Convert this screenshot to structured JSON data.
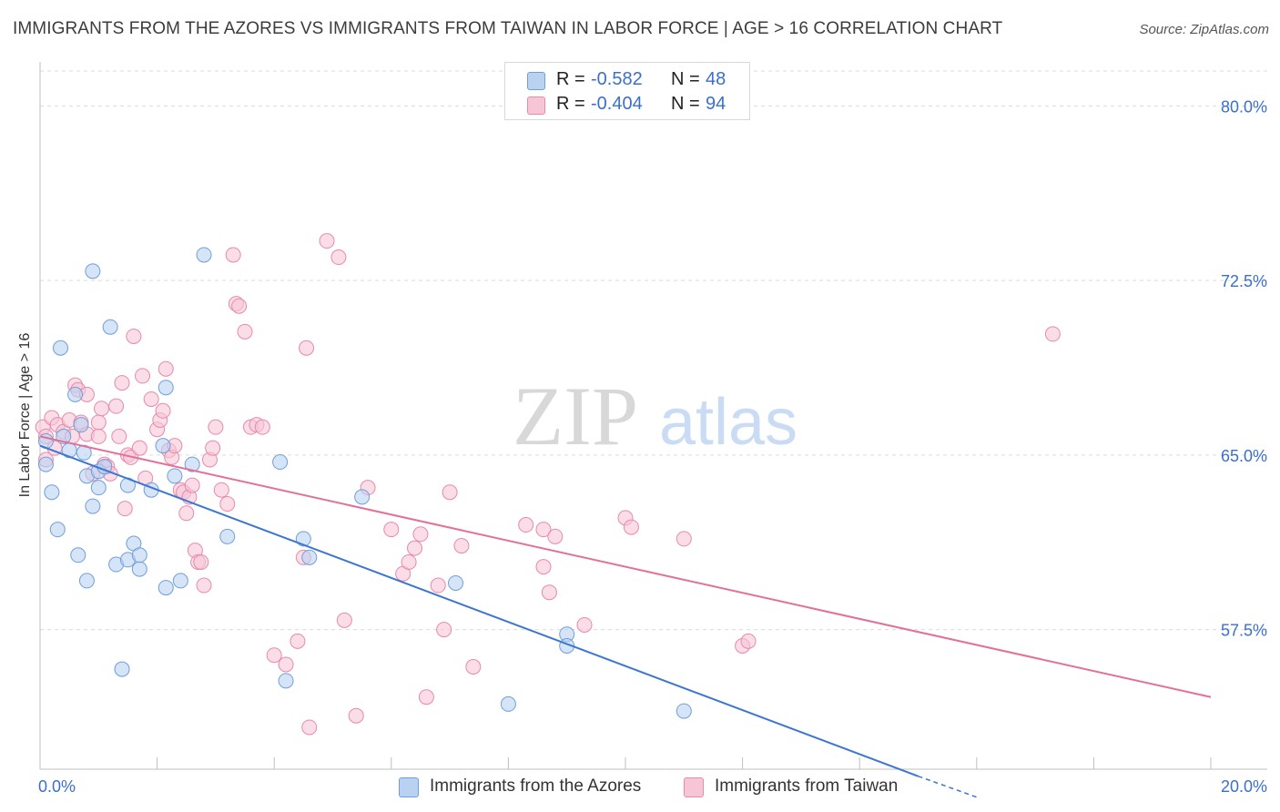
{
  "title": "IMMIGRANTS FROM THE AZORES VS IMMIGRANTS FROM TAIWAN IN LABOR FORCE | AGE > 16 CORRELATION CHART",
  "source": "Source: ZipAtlas.com",
  "watermark": {
    "zip": "ZIP",
    "atlas": "atlas"
  },
  "legend_top": {
    "rows": [
      {
        "r_label": "R =",
        "r_value": "-0.582",
        "n_label": "N =",
        "n_value": "48"
      },
      {
        "r_label": "R =",
        "r_value": "-0.404",
        "n_label": "N =",
        "n_value": "94"
      }
    ]
  },
  "legend_bottom": {
    "azores": "Immigrants from the Azores",
    "taiwan": "Immigrants from Taiwan"
  },
  "chart_data": {
    "type": "scatter",
    "title": "IMMIGRANTS FROM THE AZORES VS IMMIGRANTS FROM TAIWAN IN LABOR FORCE | AGE > 16 CORRELATION CHART",
    "xlabel": "",
    "ylabel": "In Labor Force | Age > 16",
    "xlim": [
      0,
      20
    ],
    "ylim": [
      51.5,
      81.5
    ],
    "x_tick_labels": [
      "0.0%",
      "20.0%"
    ],
    "y_ticks": [
      57.5,
      65.0,
      72.5,
      80.0
    ],
    "y_tick_labels": [
      "57.5%",
      "65.0%",
      "72.5%",
      "80.0%"
    ],
    "grid": true,
    "legend_position": "top-center",
    "colors": {
      "azores_fill": "#b9d2f2",
      "azores_stroke": "#6f9fdb",
      "azores_line": "#3a76d2",
      "taiwan_fill": "#f7c6d6",
      "taiwan_stroke": "#e88aaa",
      "taiwan_line": "#e27098",
      "tick_label": "#3b6fcc"
    },
    "series": [
      {
        "name": "Immigrants from the Azores",
        "r": -0.582,
        "n": 48,
        "trend": {
          "x": [
            0.0,
            15.0
          ],
          "y": [
            65.4,
            51.2
          ],
          "dashed_to": {
            "x": 16.0,
            "y": 50.3
          }
        },
        "points": [
          [
            0.1,
            65.6
          ],
          [
            0.1,
            64.6
          ],
          [
            0.2,
            63.4
          ],
          [
            0.3,
            61.8
          ],
          [
            0.35,
            69.6
          ],
          [
            0.4,
            65.8
          ],
          [
            0.5,
            65.2
          ],
          [
            0.6,
            67.6
          ],
          [
            0.65,
            60.7
          ],
          [
            0.7,
            66.3
          ],
          [
            0.75,
            65.1
          ],
          [
            0.8,
            59.6
          ],
          [
            0.8,
            64.1
          ],
          [
            0.9,
            62.8
          ],
          [
            0.9,
            72.9
          ],
          [
            1.0,
            63.6
          ],
          [
            1.0,
            64.3
          ],
          [
            1.1,
            64.5
          ],
          [
            1.2,
            70.5
          ],
          [
            1.3,
            60.3
          ],
          [
            1.4,
            55.8
          ],
          [
            1.5,
            60.5
          ],
          [
            1.5,
            63.7
          ],
          [
            1.6,
            61.2
          ],
          [
            1.7,
            60.1
          ],
          [
            1.7,
            60.7
          ],
          [
            1.9,
            63.5
          ],
          [
            2.1,
            65.4
          ],
          [
            2.15,
            59.3
          ],
          [
            2.15,
            67.9
          ],
          [
            2.3,
            64.1
          ],
          [
            2.4,
            59.6
          ],
          [
            2.6,
            64.6
          ],
          [
            2.8,
            73.6
          ],
          [
            3.2,
            61.5
          ],
          [
            4.1,
            64.7
          ],
          [
            4.2,
            55.3
          ],
          [
            4.5,
            61.4
          ],
          [
            4.6,
            60.6
          ],
          [
            5.5,
            63.2
          ],
          [
            7.1,
            59.5
          ],
          [
            8.0,
            54.3
          ],
          [
            9.0,
            57.3
          ],
          [
            9.0,
            56.8
          ],
          [
            11.0,
            54.0
          ]
        ]
      },
      {
        "name": "Immigrants from Taiwan",
        "r": -0.404,
        "n": 94,
        "trend": {
          "x": [
            0.0,
            20.0
          ],
          "y": [
            65.8,
            54.6
          ]
        },
        "points": [
          [
            0.05,
            66.2
          ],
          [
            0.1,
            65.8
          ],
          [
            0.1,
            64.8
          ],
          [
            0.2,
            66.6
          ],
          [
            0.25,
            65.3
          ],
          [
            0.3,
            66.3
          ],
          [
            0.4,
            66.0
          ],
          [
            0.5,
            66.5
          ],
          [
            0.55,
            65.8
          ],
          [
            0.6,
            68.0
          ],
          [
            0.65,
            67.8
          ],
          [
            0.7,
            66.4
          ],
          [
            0.8,
            67.6
          ],
          [
            0.8,
            65.9
          ],
          [
            0.9,
            64.2
          ],
          [
            1.0,
            66.4
          ],
          [
            1.0,
            65.8
          ],
          [
            1.05,
            67.0
          ],
          [
            1.1,
            64.6
          ],
          [
            1.15,
            64.5
          ],
          [
            1.2,
            64.2
          ],
          [
            1.3,
            67.1
          ],
          [
            1.35,
            65.8
          ],
          [
            1.4,
            68.1
          ],
          [
            1.45,
            62.7
          ],
          [
            1.5,
            65.0
          ],
          [
            1.55,
            64.9
          ],
          [
            1.6,
            70.1
          ],
          [
            1.7,
            65.3
          ],
          [
            1.75,
            68.4
          ],
          [
            1.8,
            64.0
          ],
          [
            1.9,
            67.4
          ],
          [
            2.0,
            66.1
          ],
          [
            2.05,
            66.5
          ],
          [
            2.1,
            66.9
          ],
          [
            2.15,
            68.7
          ],
          [
            2.2,
            65.2
          ],
          [
            2.25,
            64.9
          ],
          [
            2.3,
            65.4
          ],
          [
            2.4,
            63.5
          ],
          [
            2.45,
            63.4
          ],
          [
            2.5,
            62.5
          ],
          [
            2.55,
            63.2
          ],
          [
            2.6,
            63.7
          ],
          [
            2.65,
            60.9
          ],
          [
            2.7,
            60.4
          ],
          [
            2.75,
            60.4
          ],
          [
            2.8,
            59.4
          ],
          [
            2.9,
            64.8
          ],
          [
            2.95,
            65.3
          ],
          [
            3.0,
            66.2
          ],
          [
            3.1,
            63.5
          ],
          [
            3.2,
            62.9
          ],
          [
            3.3,
            73.6
          ],
          [
            3.35,
            71.5
          ],
          [
            3.4,
            71.4
          ],
          [
            3.5,
            70.3
          ],
          [
            3.6,
            66.2
          ],
          [
            3.7,
            66.3
          ],
          [
            3.8,
            66.2
          ],
          [
            4.0,
            56.4
          ],
          [
            4.2,
            56.0
          ],
          [
            4.4,
            57.0
          ],
          [
            4.5,
            60.6
          ],
          [
            4.55,
            69.6
          ],
          [
            4.6,
            53.3
          ],
          [
            4.9,
            74.2
          ],
          [
            5.1,
            73.5
          ],
          [
            5.2,
            57.9
          ],
          [
            5.4,
            53.8
          ],
          [
            5.6,
            63.6
          ],
          [
            6.0,
            61.8
          ],
          [
            6.2,
            59.9
          ],
          [
            6.3,
            60.4
          ],
          [
            6.4,
            61.0
          ],
          [
            6.5,
            61.6
          ],
          [
            6.6,
            54.6
          ],
          [
            6.8,
            59.4
          ],
          [
            6.9,
            57.5
          ],
          [
            7.0,
            63.4
          ],
          [
            7.2,
            61.1
          ],
          [
            7.4,
            55.9
          ],
          [
            8.3,
            62.0
          ],
          [
            8.6,
            60.2
          ],
          [
            8.6,
            61.8
          ],
          [
            8.7,
            59.1
          ],
          [
            8.8,
            61.5
          ],
          [
            9.3,
            57.7
          ],
          [
            10.0,
            62.3
          ],
          [
            10.1,
            61.9
          ],
          [
            11.0,
            61.4
          ],
          [
            12.0,
            56.8
          ],
          [
            12.1,
            57.0
          ],
          [
            17.3,
            70.2
          ]
        ]
      }
    ]
  }
}
